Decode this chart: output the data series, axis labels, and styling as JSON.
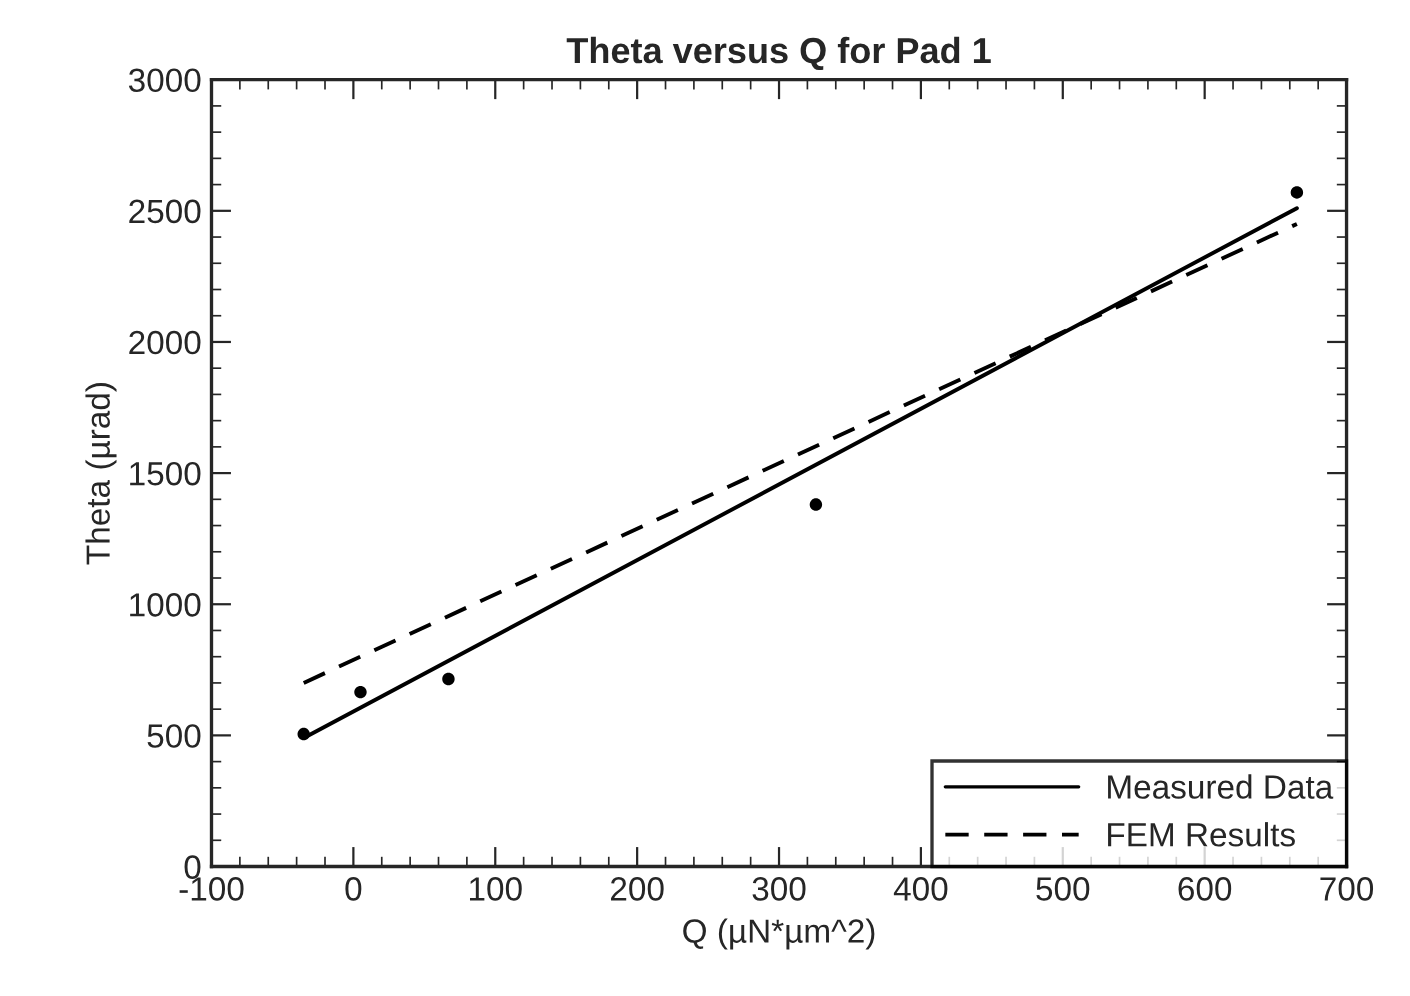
{
  "chart_data": {
    "type": "line",
    "title": "Theta versus Q for Pad 1",
    "xlabel": "Q (µN*µm^2)",
    "ylabel": "Theta (µrad)",
    "xlim": [
      -100,
      700
    ],
    "xticks": [
      -100,
      0,
      100,
      200,
      300,
      400,
      500,
      600,
      700
    ],
    "ylim": [
      0,
      3000
    ],
    "yticks": [
      0,
      500,
      1000,
      1500,
      2000,
      2500,
      3000
    ],
    "grid": false,
    "legend": "bottom right",
    "series": [
      {
        "name": "Measured Data",
        "type": "scatter",
        "marker": "circle",
        "color": "#000000",
        "x": [
          -35,
          5,
          67,
          326,
          665
        ],
        "values": [
          505,
          665,
          715,
          1380,
          2570
        ]
      },
      {
        "line_style": "solid",
        "color": "#000000",
        "x": [
          -35,
          665
        ],
        "values": [
          490,
          2510
        ]
      },
      {
        "name": "FEM Results",
        "line_style": "dashed",
        "color": "#000000",
        "x": [
          -35,
          665
        ],
        "values": [
          700,
          2450
        ]
      }
    ]
  }
}
